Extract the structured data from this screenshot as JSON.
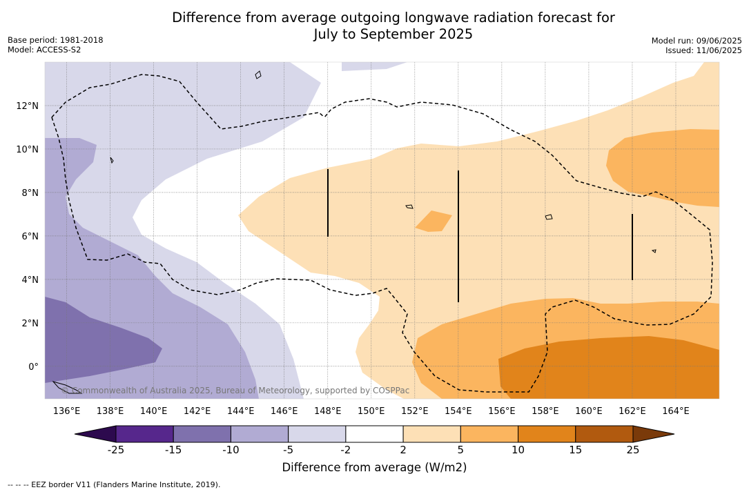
{
  "title": "Difference from average outgoing longwave radiation forecast for July to September 2025",
  "title_line1": "Difference from average outgoing longwave radiation forecast for",
  "title_line2": "July to September 2025",
  "meta_left": {
    "base_period": "Base period: 1981-2018",
    "model": "Model: ACCESS-S2"
  },
  "meta_right": {
    "model_run": "Model run: 09/06/2025",
    "issued": "Issued: 11/06/2025"
  },
  "copyright": "© Commonwealth of Australia 2025, Bureau of Meteorology, supported by COSPPac",
  "footnote": "-- -- -- EEZ border V11 (Flanders Marine Institute, 2019).",
  "map_data": {
    "type": "heatmap",
    "lon_range": [
      135,
      166
    ],
    "lat_range": [
      -1.5,
      14
    ],
    "lon_ticks": [
      "136°E",
      "138°E",
      "140°E",
      "142°E",
      "144°E",
      "146°E",
      "148°E",
      "150°E",
      "152°E",
      "154°E",
      "156°E",
      "158°E",
      "160°E",
      "162°E",
      "164°E"
    ],
    "lat_ticks": [
      "12°N",
      "10°N",
      "8°N",
      "6°N",
      "4°N",
      "2°N",
      "0°"
    ],
    "grid": true
  },
  "colorbar": {
    "title": "Difference from average (W/m2)",
    "levels": [
      "-25",
      "-15",
      "-10",
      "-5",
      "-2",
      "2",
      "5",
      "10",
      "15",
      "25"
    ],
    "colors": [
      "#56278c",
      "#7f71ad",
      "#b1abd3",
      "#d8d8ea",
      "#ffffff",
      "#fde0b6",
      "#fbb55f",
      "#e1841b",
      "#b15a0f"
    ],
    "extend_low_color": "#2d0a4e",
    "extend_high_color": "#7a3a0a"
  }
}
